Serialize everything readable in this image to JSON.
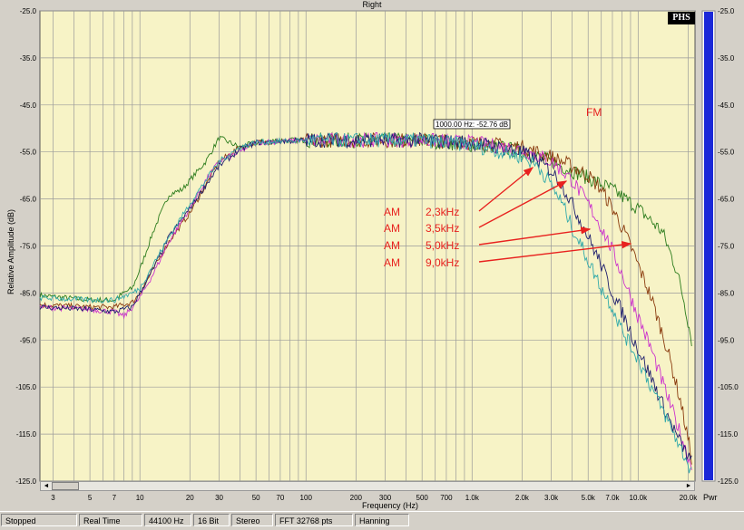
{
  "chart_data": {
    "type": "line",
    "title": "Right",
    "xlabel": "Frequency (Hz)",
    "ylabel": "Relative Amplitude (dB)",
    "xscale": "log",
    "xlim": [
      2.5,
      22000
    ],
    "ylim": [
      -125,
      -25
    ],
    "grid": true,
    "y_ticks": [
      "-25.0",
      "-35.0",
      "-45.0",
      "-55.0",
      "-65.0",
      "-75.0",
      "-85.0",
      "-95.0",
      "-105.0",
      "-115.0",
      "-125.0"
    ],
    "y_tick_values": [
      -25,
      -35,
      -45,
      -55,
      -65,
      -75,
      -85,
      -95,
      -105,
      -115,
      -125
    ],
    "x_ticks": [
      {
        "v": 3,
        "label": "3"
      },
      {
        "v": 5,
        "label": "5"
      },
      {
        "v": 7,
        "label": "7"
      },
      {
        "v": 10,
        "label": "10"
      },
      {
        "v": 20,
        "label": "20"
      },
      {
        "v": 30,
        "label": "30"
      },
      {
        "v": 50,
        "label": "50"
      },
      {
        "v": 70,
        "label": "70"
      },
      {
        "v": 100,
        "label": "100"
      },
      {
        "v": 200,
        "label": "200"
      },
      {
        "v": 300,
        "label": "300"
      },
      {
        "v": 500,
        "label": "500"
      },
      {
        "v": 700,
        "label": "700"
      },
      {
        "v": 1000,
        "label": "1.0k"
      },
      {
        "v": 2000,
        "label": "2.0k"
      },
      {
        "v": 3000,
        "label": "3.0k"
      },
      {
        "v": 5000,
        "label": "5.0k"
      },
      {
        "v": 7000,
        "label": "7.0k"
      },
      {
        "v": 10000,
        "label": "10.0k"
      },
      {
        "v": 20000,
        "label": "20.0k"
      }
    ],
    "cursor_readout": "1000.00 Hz: -52.76 dB",
    "annotations": [
      "FM",
      "AM",
      "2,3kHz",
      "3,5kHz",
      "5,0kHz",
      "9,0kHz"
    ],
    "series": [
      {
        "name": "FM",
        "color": "#2e7d1e",
        "points": [
          [
            2.5,
            -85.5
          ],
          [
            5,
            -86.5
          ],
          [
            7,
            -86.5
          ],
          [
            8,
            -85
          ],
          [
            9,
            -84
          ],
          [
            10,
            -80
          ],
          [
            12,
            -72
          ],
          [
            15,
            -64
          ],
          [
            18,
            -63
          ],
          [
            20,
            -61
          ],
          [
            25,
            -57
          ],
          [
            30,
            -52
          ],
          [
            40,
            -54
          ],
          [
            50,
            -53
          ],
          [
            70,
            -52.5
          ],
          [
            100,
            -52.5
          ],
          [
            200,
            -52.5
          ],
          [
            500,
            -52.5
          ],
          [
            1000,
            -53.5
          ],
          [
            1500,
            -54
          ],
          [
            2000,
            -55
          ],
          [
            3000,
            -57
          ],
          [
            4000,
            -59
          ],
          [
            5000,
            -60.5
          ],
          [
            7000,
            -63
          ],
          [
            10000,
            -67
          ],
          [
            14000,
            -72
          ],
          [
            17000,
            -80
          ],
          [
            19000,
            -87
          ],
          [
            21000,
            -95
          ]
        ]
      },
      {
        "name": "AM 9,0kHz",
        "color": "#8b3c0f",
        "points": [
          [
            2.5,
            -87.5
          ],
          [
            5,
            -88
          ],
          [
            7,
            -88
          ],
          [
            9,
            -87
          ],
          [
            10,
            -85
          ],
          [
            12,
            -80
          ],
          [
            15,
            -74
          ],
          [
            20,
            -68
          ],
          [
            25,
            -62
          ],
          [
            30,
            -57
          ],
          [
            40,
            -54
          ],
          [
            50,
            -53
          ],
          [
            100,
            -52.5
          ],
          [
            500,
            -52.5
          ],
          [
            1000,
            -53
          ],
          [
            2000,
            -54
          ],
          [
            3000,
            -56
          ],
          [
            4000,
            -58
          ],
          [
            5000,
            -60
          ],
          [
            6000,
            -63
          ],
          [
            7000,
            -67
          ],
          [
            8000,
            -71
          ],
          [
            9000,
            -75
          ],
          [
            10000,
            -79
          ],
          [
            12000,
            -86
          ],
          [
            15000,
            -97
          ],
          [
            18000,
            -108
          ],
          [
            21000,
            -120
          ]
        ]
      },
      {
        "name": "AM 5,0kHz",
        "color": "#cc33cc",
        "points": [
          [
            2.5,
            -88
          ],
          [
            5,
            -88.5
          ],
          [
            7,
            -89
          ],
          [
            8,
            -90
          ],
          [
            9,
            -88
          ],
          [
            10,
            -86
          ],
          [
            12,
            -81
          ],
          [
            15,
            -74
          ],
          [
            20,
            -67
          ],
          [
            25,
            -61
          ],
          [
            30,
            -57
          ],
          [
            40,
            -55
          ],
          [
            50,
            -53
          ],
          [
            100,
            -52.5
          ],
          [
            500,
            -52.5
          ],
          [
            1000,
            -53
          ],
          [
            2000,
            -54.5
          ],
          [
            3000,
            -57
          ],
          [
            4000,
            -61
          ],
          [
            5000,
            -66
          ],
          [
            6000,
            -71
          ],
          [
            7000,
            -76
          ],
          [
            8000,
            -81
          ],
          [
            10000,
            -90
          ],
          [
            12000,
            -97
          ],
          [
            15000,
            -107
          ],
          [
            18000,
            -115
          ],
          [
            21000,
            -122
          ]
        ]
      },
      {
        "name": "AM 3,5kHz",
        "color": "#1f1f6e",
        "points": [
          [
            2.5,
            -88
          ],
          [
            5,
            -88.5
          ],
          [
            7,
            -89
          ],
          [
            9,
            -88
          ],
          [
            10,
            -85
          ],
          [
            12,
            -80
          ],
          [
            15,
            -73
          ],
          [
            20,
            -67
          ],
          [
            25,
            -62
          ],
          [
            30,
            -58
          ],
          [
            40,
            -54.5
          ],
          [
            50,
            -53
          ],
          [
            100,
            -52.5
          ],
          [
            500,
            -52.5
          ],
          [
            1000,
            -53
          ],
          [
            2000,
            -55
          ],
          [
            2500,
            -57
          ],
          [
            3000,
            -59
          ],
          [
            3500,
            -62
          ],
          [
            4000,
            -66
          ],
          [
            5000,
            -73
          ],
          [
            6000,
            -79
          ],
          [
            7000,
            -85
          ],
          [
            8000,
            -89
          ],
          [
            10000,
            -97
          ],
          [
            12000,
            -103
          ],
          [
            15000,
            -111
          ],
          [
            18000,
            -117
          ],
          [
            21000,
            -121
          ]
        ]
      },
      {
        "name": "AM 2,3kHz",
        "color": "#33aaaa",
        "points": [
          [
            2.5,
            -86
          ],
          [
            5,
            -86.5
          ],
          [
            7,
            -86.5
          ],
          [
            9,
            -85
          ],
          [
            10,
            -84
          ],
          [
            12,
            -79
          ],
          [
            15,
            -73
          ],
          [
            20,
            -66
          ],
          [
            25,
            -61
          ],
          [
            30,
            -57
          ],
          [
            40,
            -54
          ],
          [
            50,
            -53
          ],
          [
            100,
            -52.5
          ],
          [
            500,
            -52.5
          ],
          [
            1000,
            -53.5
          ],
          [
            1500,
            -55
          ],
          [
            2000,
            -56
          ],
          [
            2500,
            -58
          ],
          [
            3000,
            -62
          ],
          [
            3500,
            -66
          ],
          [
            4000,
            -71
          ],
          [
            5000,
            -78
          ],
          [
            6000,
            -84
          ],
          [
            7000,
            -88
          ],
          [
            8000,
            -93
          ],
          [
            10000,
            -99
          ],
          [
            12000,
            -105
          ],
          [
            15000,
            -112
          ],
          [
            18000,
            -118
          ],
          [
            21000,
            -123
          ]
        ]
      }
    ]
  },
  "status_bar": {
    "mode": "Stopped",
    "timing": "Real Time",
    "sample_rate": "44100 Hz",
    "bit_depth": "16 Bit",
    "channels": "Stereo",
    "fft": "FFT 32768 pts",
    "window": "Hanning"
  },
  "logo": "PHS",
  "pwr_label": "Pwr",
  "scrollbar": {
    "left_arrow": "◄",
    "right_arrow": "►"
  },
  "colors": {
    "plot_bg": "#f7f3c6",
    "grid": "#9a9a9a",
    "annotation": "#e8221f",
    "power_bar": "#1a28d8"
  }
}
